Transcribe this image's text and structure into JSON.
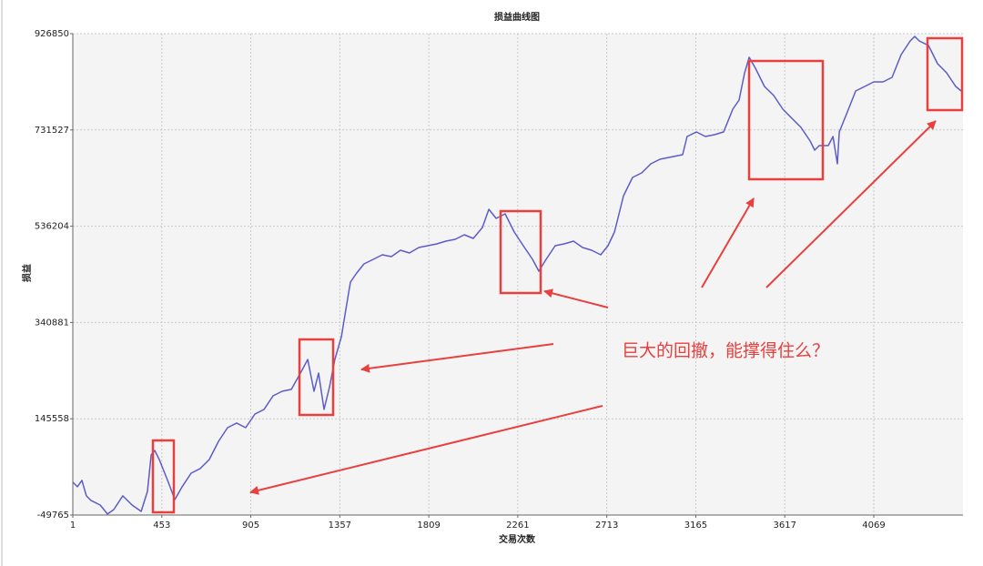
{
  "chart_data": {
    "type": "line",
    "title": "损益曲线图",
    "xlabel": "交易次数",
    "ylabel": "损益",
    "annotation": "巨大的回撤，能撑得住么？",
    "grid": true,
    "xlim": [
      1,
      4522
    ],
    "xticks": [
      1,
      453,
      905,
      1357,
      1809,
      2261,
      2713,
      3165,
      3617,
      4069
    ],
    "ylim": [
      -49765,
      926850
    ],
    "yticks": [
      -49765,
      145558,
      340881,
      536204,
      731527,
      926850
    ],
    "x": [
      1,
      24,
      47,
      70,
      93,
      140,
      177,
      209,
      255,
      302,
      348,
      380,
      399,
      417,
      440,
      486,
      519,
      556,
      602,
      648,
      694,
      741,
      787,
      833,
      879,
      926,
      972,
      1018,
      1064,
      1111,
      1157,
      1194,
      1226,
      1249,
      1277,
      1305,
      1332,
      1365,
      1388,
      1411,
      1443,
      1480,
      1527,
      1573,
      1619,
      1665,
      1711,
      1758,
      1804,
      1850,
      1896,
      1943,
      1989,
      2035,
      2081,
      2114,
      2151,
      2197,
      2243,
      2289,
      2336,
      2368,
      2405,
      2451,
      2497,
      2544,
      2590,
      2636,
      2682,
      2719,
      2752,
      2798,
      2844,
      2890,
      2937,
      2983,
      3052,
      3098,
      3121,
      3168,
      3214,
      3260,
      3306,
      3353,
      3385,
      3413,
      3436,
      3468,
      3514,
      3561,
      3607,
      3653,
      3699,
      3746,
      3769,
      3792,
      3838,
      3862,
      3884,
      3894,
      3931,
      3977,
      4023,
      4069,
      4116,
      4162,
      4208,
      4254,
      4277,
      4300,
      4347,
      4393,
      4439,
      4485,
      4513
    ],
    "series": [
      {
        "color": "#5c5cc8",
        "values": [
          16800,
          7600,
          20500,
          -10900,
          -20100,
          -29400,
          -47800,
          -38600,
          -10900,
          -29400,
          -42300,
          -1700,
          72200,
          81400,
          62900,
          16800,
          -18300,
          7600,
          35200,
          44500,
          62900,
          99800,
          127500,
          136800,
          127500,
          155200,
          164500,
          192100,
          201400,
          205100,
          238300,
          266000,
          201400,
          238300,
          164500,
          210600,
          266000,
          312100,
          367500,
          422900,
          441400,
          459800,
          469000,
          478300,
          474600,
          487500,
          482000,
          493000,
          496700,
          500400,
          505900,
          509600,
          518900,
          511500,
          533700,
          570600,
          552100,
          561300,
          524400,
          496700,
          469000,
          445000,
          469000,
          496700,
          500400,
          505900,
          493000,
          487500,
          478300,
          496700,
          524400,
          598300,
          635200,
          644400,
          662900,
          672100,
          677700,
          681300,
          718300,
          727500,
          718300,
          722000,
          727500,
          773600,
          792100,
          847500,
          878900,
          856700,
          819800,
          801300,
          773600,
          755200,
          736700,
          709000,
          690600,
          699800,
          699800,
          718300,
          662900,
          727500,
          764400,
          810500,
          819800,
          829000,
          829000,
          838200,
          884400,
          912100,
          921300,
          912100,
          902900,
          866000,
          847500,
          819800,
          810500
        ]
      }
    ]
  }
}
